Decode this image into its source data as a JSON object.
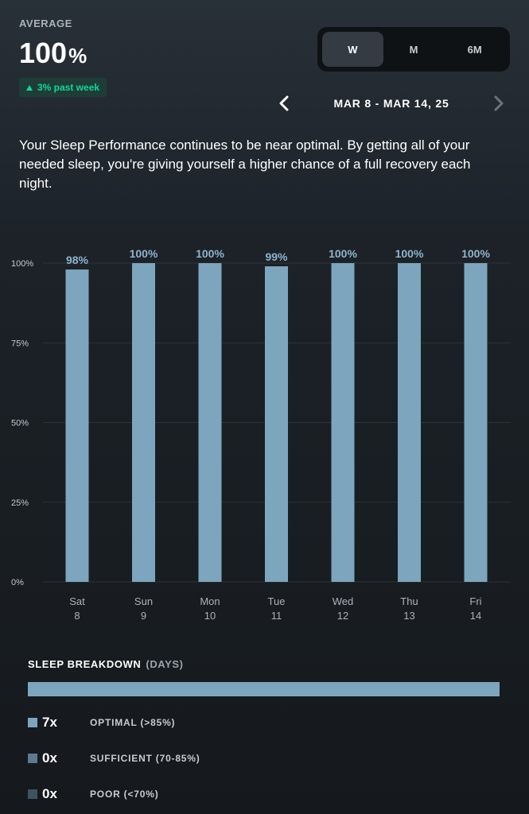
{
  "summary_header": {
    "label": "AVERAGE",
    "value": "100",
    "unit": "%",
    "delta_text": "3% past week",
    "delta_color": "#16d49a"
  },
  "period_selector": {
    "options": [
      "W",
      "M",
      "6M"
    ],
    "selected": "W"
  },
  "date_nav": {
    "range": "MAR 8 - MAR 14, 25",
    "prev_icon": "chevron-left-icon",
    "next_icon": "chevron-right-icon"
  },
  "description": "Your Sleep Performance continues to be near optimal. By getting all of your needed sleep, you're giving yourself a higher chance of a full recovery each night.",
  "chart_data": {
    "type": "bar",
    "title": "",
    "xlabel": "",
    "ylabel": "",
    "ylim": [
      0,
      100
    ],
    "y_ticks": [
      "0%",
      "25%",
      "50%",
      "75%",
      "100%"
    ],
    "categories": [
      "Sat",
      "Sun",
      "Mon",
      "Tue",
      "Wed",
      "Thu",
      "Fri"
    ],
    "dates": [
      "8",
      "9",
      "10",
      "11",
      "12",
      "13",
      "14"
    ],
    "values": [
      98,
      100,
      100,
      99,
      100,
      100,
      100
    ],
    "value_labels": [
      "98%",
      "100%",
      "100%",
      "99%",
      "100%",
      "100%",
      "100%"
    ],
    "bar_color": "#7ea5be",
    "grid": true
  },
  "breakdown": {
    "title": "SLEEP BREAKDOWN",
    "unit": "(DAYS)",
    "items": [
      {
        "count": "7x",
        "label": "OPTIMAL (>85%)",
        "color": "#7ea5be"
      },
      {
        "count": "0x",
        "label": "SUFFICIENT (70-85%)",
        "color": "#5d7a8f"
      },
      {
        "count": "0x",
        "label": "POOR (<70%)",
        "color": "#3f5260"
      }
    ]
  }
}
